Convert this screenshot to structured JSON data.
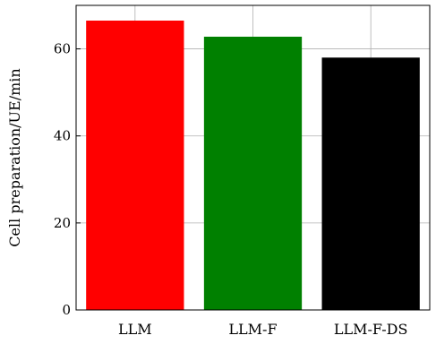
{
  "chart_data": {
    "type": "bar",
    "categories": [
      "LLM",
      "LLM-F",
      "LLM-F-DS"
    ],
    "values": [
      66.5,
      62.8,
      58.0
    ],
    "colors": [
      "#ff0000",
      "#008000",
      "#000000"
    ],
    "ylabel": "Cell preparation/UE/min",
    "ylim": [
      0,
      70
    ],
    "yticks": [
      0,
      20,
      40,
      60
    ],
    "grid": true
  }
}
